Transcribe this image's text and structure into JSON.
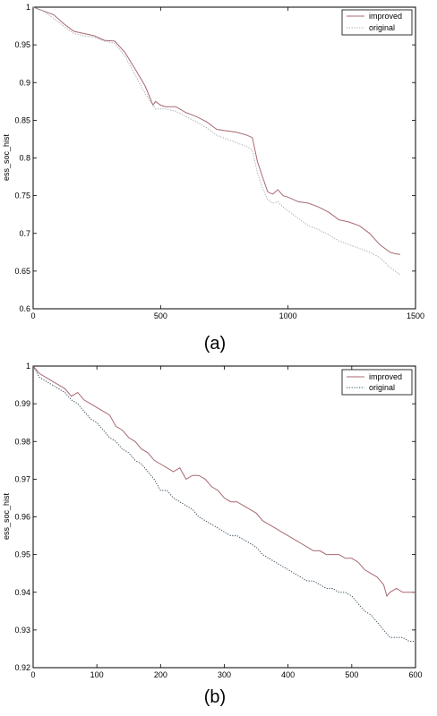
{
  "chart_data": [
    {
      "type": "line",
      "caption": "(a)",
      "ylabel": "ess_soc_hist",
      "xlabel": "",
      "xlim": [
        0,
        1500
      ],
      "ylim": [
        0.6,
        1.0
      ],
      "xticks": [
        "0",
        "500",
        "1000",
        "1500"
      ],
      "yticks": [
        "0.6",
        "0.65",
        "0.7",
        "0.75",
        "0.8",
        "0.85",
        "0.9",
        "0.95",
        "1"
      ],
      "grid": false,
      "legend_position": "top-right",
      "series": [
        {
          "name": "improved",
          "color": "#a86870",
          "style": "solid",
          "x": [
            0,
            40,
            80,
            120,
            160,
            200,
            240,
            280,
            320,
            360,
            400,
            440,
            470,
            480,
            500,
            520,
            560,
            600,
            640,
            680,
            720,
            760,
            800,
            840,
            860,
            880,
            900,
            920,
            940,
            960,
            980,
            1000,
            1040,
            1080,
            1120,
            1160,
            1200,
            1240,
            1280,
            1320,
            1360,
            1400,
            1420,
            1440
          ],
          "y": [
            1.0,
            0.995,
            0.99,
            0.978,
            0.968,
            0.965,
            0.962,
            0.956,
            0.955,
            0.94,
            0.918,
            0.895,
            0.87,
            0.875,
            0.87,
            0.868,
            0.868,
            0.86,
            0.855,
            0.848,
            0.838,
            0.836,
            0.834,
            0.83,
            0.827,
            0.795,
            0.775,
            0.755,
            0.752,
            0.758,
            0.75,
            0.748,
            0.742,
            0.74,
            0.735,
            0.728,
            0.718,
            0.715,
            0.71,
            0.7,
            0.685,
            0.675,
            0.673,
            0.672
          ]
        },
        {
          "name": "original",
          "color": "#a0a8b0",
          "style": "dotted",
          "x": [
            0,
            40,
            80,
            120,
            160,
            200,
            240,
            280,
            320,
            360,
            400,
            440,
            480,
            520,
            560,
            600,
            640,
            680,
            720,
            760,
            800,
            840,
            860,
            880,
            900,
            920,
            940,
            960,
            980,
            1000,
            1040,
            1080,
            1120,
            1160,
            1200,
            1240,
            1280,
            1320,
            1360,
            1400,
            1420,
            1440
          ],
          "y": [
            1.0,
            0.995,
            0.985,
            0.975,
            0.965,
            0.962,
            0.96,
            0.955,
            0.952,
            0.935,
            0.91,
            0.885,
            0.865,
            0.865,
            0.862,
            0.855,
            0.848,
            0.84,
            0.83,
            0.825,
            0.82,
            0.815,
            0.81,
            0.78,
            0.76,
            0.745,
            0.74,
            0.742,
            0.735,
            0.73,
            0.72,
            0.71,
            0.705,
            0.698,
            0.69,
            0.685,
            0.68,
            0.675,
            0.668,
            0.655,
            0.65,
            0.645
          ]
        }
      ]
    },
    {
      "type": "line",
      "caption": "(b)",
      "ylabel": "ess_soc_hist",
      "xlabel": "",
      "xlim": [
        0,
        600
      ],
      "ylim": [
        0.92,
        1.0
      ],
      "xticks": [
        "0",
        "100",
        "200",
        "300",
        "400",
        "500",
        "600"
      ],
      "yticks": [
        "0.92",
        "0.93",
        "0.94",
        "0.95",
        "0.96",
        "0.97",
        "0.98",
        "0.99",
        "1"
      ],
      "grid": false,
      "legend_position": "top-right",
      "series": [
        {
          "name": "improved",
          "color": "#a86870",
          "style": "solid",
          "x": [
            0,
            10,
            20,
            30,
            40,
            50,
            60,
            70,
            80,
            90,
            100,
            110,
            120,
            130,
            140,
            150,
            160,
            170,
            180,
            190,
            200,
            210,
            220,
            230,
            240,
            250,
            260,
            270,
            280,
            290,
            300,
            310,
            320,
            330,
            340,
            350,
            360,
            370,
            380,
            390,
            400,
            410,
            420,
            430,
            440,
            450,
            460,
            470,
            480,
            490,
            500,
            510,
            520,
            530,
            540,
            550,
            555,
            560,
            570,
            580,
            590,
            600
          ],
          "y": [
            1.0,
            0.998,
            0.997,
            0.996,
            0.995,
            0.994,
            0.992,
            0.993,
            0.991,
            0.99,
            0.989,
            0.988,
            0.987,
            0.984,
            0.983,
            0.981,
            0.98,
            0.978,
            0.977,
            0.975,
            0.974,
            0.973,
            0.972,
            0.973,
            0.97,
            0.971,
            0.971,
            0.97,
            0.968,
            0.967,
            0.965,
            0.964,
            0.964,
            0.963,
            0.962,
            0.961,
            0.959,
            0.958,
            0.957,
            0.956,
            0.955,
            0.954,
            0.953,
            0.952,
            0.951,
            0.951,
            0.95,
            0.95,
            0.95,
            0.949,
            0.949,
            0.948,
            0.946,
            0.945,
            0.944,
            0.942,
            0.939,
            0.94,
            0.941,
            0.94,
            0.94,
            0.94
          ]
        },
        {
          "name": "original",
          "color": "#304858",
          "style": "dotted",
          "x": [
            0,
            10,
            20,
            30,
            40,
            50,
            60,
            70,
            80,
            90,
            100,
            110,
            120,
            130,
            140,
            150,
            160,
            170,
            180,
            190,
            200,
            210,
            220,
            230,
            240,
            250,
            260,
            270,
            280,
            290,
            300,
            310,
            320,
            330,
            340,
            350,
            360,
            370,
            380,
            390,
            400,
            410,
            420,
            430,
            440,
            450,
            460,
            470,
            480,
            490,
            500,
            510,
            520,
            530,
            540,
            550,
            560,
            570,
            580,
            590,
            600
          ],
          "y": [
            1.0,
            0.997,
            0.996,
            0.995,
            0.994,
            0.993,
            0.991,
            0.99,
            0.988,
            0.986,
            0.985,
            0.983,
            0.981,
            0.98,
            0.978,
            0.977,
            0.975,
            0.974,
            0.972,
            0.97,
            0.967,
            0.967,
            0.965,
            0.964,
            0.963,
            0.962,
            0.96,
            0.959,
            0.958,
            0.957,
            0.956,
            0.955,
            0.955,
            0.954,
            0.953,
            0.952,
            0.95,
            0.949,
            0.948,
            0.947,
            0.946,
            0.945,
            0.944,
            0.943,
            0.943,
            0.942,
            0.941,
            0.941,
            0.94,
            0.94,
            0.939,
            0.937,
            0.935,
            0.934,
            0.932,
            0.93,
            0.928,
            0.928,
            0.928,
            0.927,
            0.927
          ]
        }
      ]
    }
  ]
}
